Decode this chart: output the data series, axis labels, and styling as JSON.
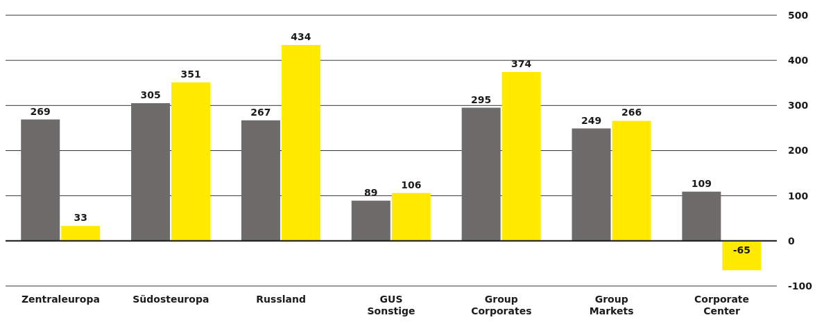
{
  "chart_data": {
    "type": "bar",
    "categories": [
      "Zentraleuropa",
      "Südosteuropa",
      "Russland",
      "GUS Sonstige",
      "Group Corporates",
      "Group Markets",
      "Corporate Center"
    ],
    "series": [
      {
        "color": "#6d6c6a",
        "values": [
          269,
          305,
          267,
          89,
          295,
          249,
          109
        ]
      },
      {
        "color": "#ffea00",
        "values": [
          33,
          351,
          434,
          106,
          374,
          266,
          -65
        ]
      }
    ],
    "ylim": [
      -100,
      500
    ],
    "yticks": [
      -100,
      0,
      100,
      200,
      300,
      400,
      500
    ],
    "grid": "y",
    "data_labels": true,
    "ref_lines": [
      {
        "axis": "y",
        "value": 0,
        "color": "#1a1a1a"
      }
    ]
  }
}
